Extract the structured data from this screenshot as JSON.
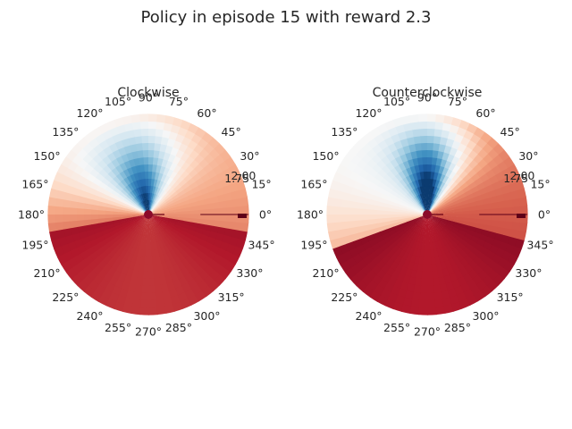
{
  "figure": {
    "title": "Policy in episode 15 with reward 2.3"
  },
  "chart_data": [
    {
      "type": "heatmap",
      "subtype": "polar",
      "title": "Clockwise",
      "theta_ticks": [
        "0°",
        "15°",
        "30°",
        "45°",
        "60°",
        "75°",
        "90°",
        "105°",
        "120°",
        "135°",
        "150°",
        "165°",
        "180°",
        "195°",
        "210°",
        "225°",
        "240°",
        "255°",
        "270°",
        "285°",
        "300°",
        "315°",
        "330°",
        "345°"
      ],
      "r_tick_labels": [
        "1.75",
        "2.00"
      ],
      "colormap": "RdBu",
      "color_high": "#1a5fa3",
      "color_low": "#9e0d25",
      "lobe_center_deg": 100,
      "lobe_width_deg": 30
    },
    {
      "type": "heatmap",
      "subtype": "polar",
      "title": "Counterclockwise",
      "theta_ticks": [
        "0°",
        "15°",
        "30°",
        "45°",
        "60°",
        "75°",
        "90°",
        "105°",
        "120°",
        "135°",
        "150°",
        "165°",
        "180°",
        "195°",
        "210°",
        "225°",
        "240°",
        "255°",
        "270°",
        "285°",
        "300°",
        "315°",
        "330°",
        "345°"
      ],
      "r_tick_labels": [
        "1.75",
        "2.00"
      ],
      "colormap": "RdBu",
      "color_high": "#1a5fa3",
      "color_low": "#9e0d25",
      "lobe_center_deg": 88,
      "lobe_width_deg": 24
    }
  ]
}
